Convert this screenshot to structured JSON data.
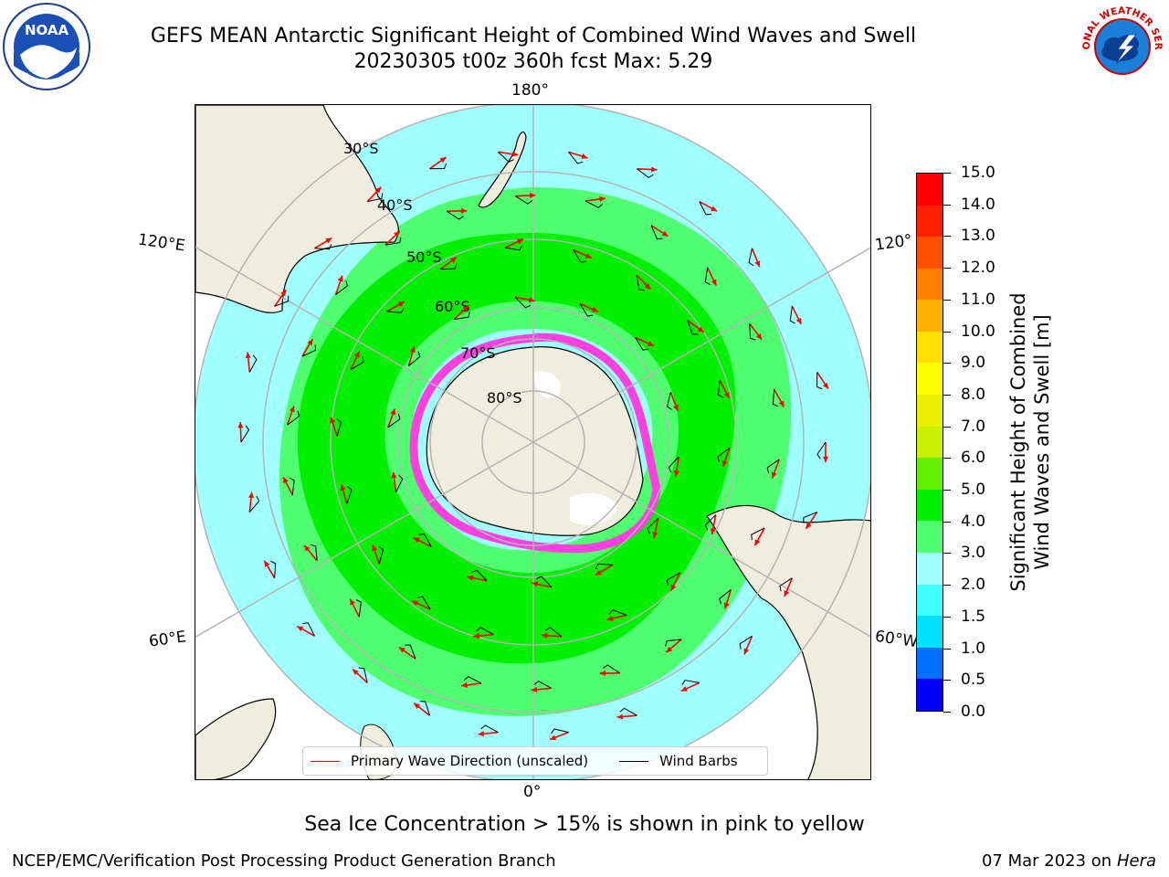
{
  "header": {
    "title_line1": "GEFS MEAN Antarctic Significant Height of Combined Wind Waves and Swell",
    "title_line2": "20230305 t00z 360h fcst   Max: 5.29"
  },
  "map": {
    "lon_labels": {
      "top": "180°",
      "bottom": "0°",
      "left_upper": "120°E",
      "left_lower": "60°E",
      "right_upper": "120°",
      "right_lower": "60°W"
    },
    "lat_labels": [
      "30°S",
      "40°S",
      "50°S",
      "60°S",
      "70°S",
      "80°S"
    ]
  },
  "colorbar": {
    "title_line1": "Significant Height of Combined",
    "title_line2": "Wind Waves and Swell [m]",
    "ticks": [
      "0.0",
      "0.5",
      "1.0",
      "1.5",
      "2.0",
      "3.0",
      "4.0",
      "5.0",
      "6.0",
      "7.0",
      "8.0",
      "9.0",
      "10.0",
      "11.0",
      "12.0",
      "13.0",
      "14.0",
      "15.0"
    ],
    "colors": [
      "#0000ff",
      "#0070ff",
      "#00e0ff",
      "#40ffff",
      "#a0ffff",
      "#50ff70",
      "#00f000",
      "#60f000",
      "#c8f000",
      "#e8f000",
      "#ffff00",
      "#ffe000",
      "#ffb000",
      "#ff8000",
      "#ff5000",
      "#ff2000",
      "#ff0000"
    ]
  },
  "legend": {
    "wave_direction": "Primary Wave Direction (unscaled)",
    "wind_barbs": "Wind Barbs",
    "wave_color": "#ff0000",
    "barb_color": "#000000"
  },
  "footer": {
    "note": "Sea Ice Concentration > 15% is shown in pink to yellow",
    "credit": "NCEP/EMC/Verification Post Processing Product Generation Branch",
    "date": "07 Mar 2023 on",
    "machine": "Hera"
  },
  "logos": {
    "left": "NOAA",
    "right": "NATIONAL WEATHER SERVICE"
  }
}
